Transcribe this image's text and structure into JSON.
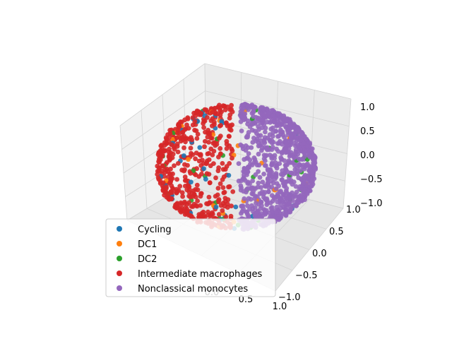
{
  "chart_data": {
    "type": "scatter",
    "projection": "3d",
    "title": "",
    "xlabel": "",
    "ylabel": "",
    "zlabel": "",
    "xlim": [
      -1.0,
      1.0
    ],
    "ylim": [
      -1.0,
      1.0
    ],
    "zlim": [
      -1.0,
      1.0
    ],
    "grid": true,
    "legend_position": "lower-left",
    "x_ticks": [
      "−1.0",
      "−0.5",
      "0.0",
      "0.5",
      "1.0"
    ],
    "y_ticks": [
      "−1.0",
      "−0.5",
      "0.0",
      "0.5",
      "1.0"
    ],
    "z_ticks": [
      "−1.0",
      "−0.5",
      "0.0",
      "0.5",
      "1.0"
    ],
    "series": [
      {
        "name": "Cycling",
        "color": "#1f77b4",
        "region": "sphere surface, scattered",
        "count": 40
      },
      {
        "name": "DC1",
        "color": "#ff7f0e",
        "region": "sphere surface, scattered",
        "count": 25
      },
      {
        "name": "DC2",
        "color": "#2ca02c",
        "region": "sphere surface, scattered",
        "count": 35
      },
      {
        "name": "Intermediate macrophages",
        "color": "#d62728",
        "region": "left hemisphere of unit sphere (x < 0)",
        "count": 500
      },
      {
        "name": "Nonclassical monocytes",
        "color": "#9467bd",
        "region": "right hemisphere of unit sphere (x > 0)",
        "count": 900
      }
    ]
  }
}
